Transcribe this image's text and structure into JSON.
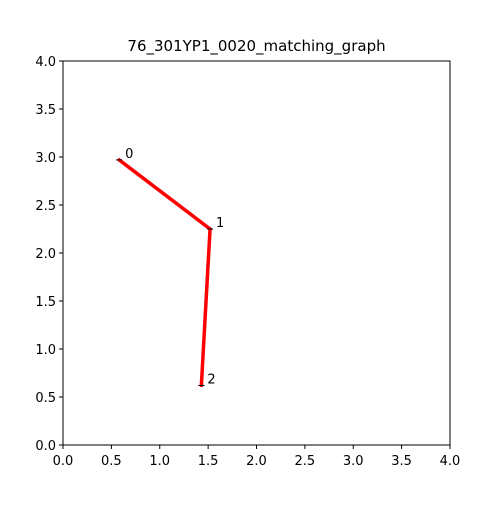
{
  "chart_data": {
    "type": "line",
    "title": "76_301YP1_0020_matching_graph",
    "xlabel": "",
    "ylabel": "",
    "xlim": [
      0,
      4
    ],
    "ylim": [
      0,
      4
    ],
    "grid": false,
    "x_ticks": [
      "0.0",
      "0.5",
      "1.0",
      "1.5",
      "2.0",
      "2.5",
      "3.0",
      "3.5",
      "4.0"
    ],
    "y_ticks": [
      "0.0",
      "0.5",
      "1.0",
      "1.5",
      "2.0",
      "2.5",
      "3.0",
      "3.5",
      "4.0"
    ],
    "nodes": [
      {
        "label": "0",
        "x": 0.58,
        "y": 2.97
      },
      {
        "label": "1",
        "x": 1.52,
        "y": 2.25
      },
      {
        "label": "2",
        "x": 1.43,
        "y": 0.62
      }
    ],
    "edges": [
      {
        "from": 0,
        "to": 1
      },
      {
        "from": 1,
        "to": 2
      }
    ],
    "colors": {
      "edge": "#ff0000",
      "node_marker": "#000000",
      "axes": "#000000"
    }
  }
}
